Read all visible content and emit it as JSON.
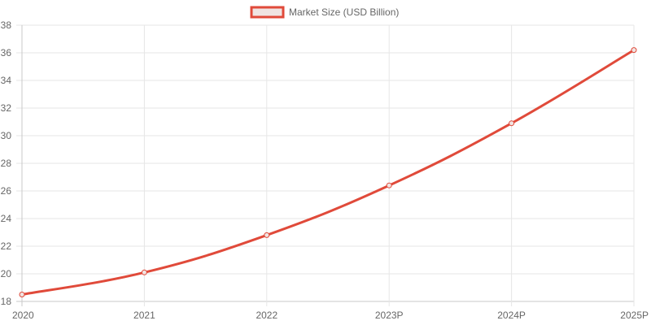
{
  "chart_data": {
    "type": "line",
    "categories": [
      "2020",
      "2021",
      "2022",
      "2023P",
      "2024P",
      "2025P"
    ],
    "series": [
      {
        "name": "Market Size (USD Billion)",
        "values": [
          18.5,
          20.1,
          22.8,
          26.4,
          30.9,
          36.2
        ],
        "color": "#e04a3a",
        "fill": "#f0e4e2"
      }
    ],
    "yticks": [
      18,
      20,
      22,
      24,
      26,
      28,
      30,
      32,
      34,
      36,
      38
    ],
    "ylim": [
      18,
      38
    ],
    "grid": true,
    "legend_position": "top-center",
    "title": "",
    "xlabel": "",
    "ylabel": ""
  }
}
